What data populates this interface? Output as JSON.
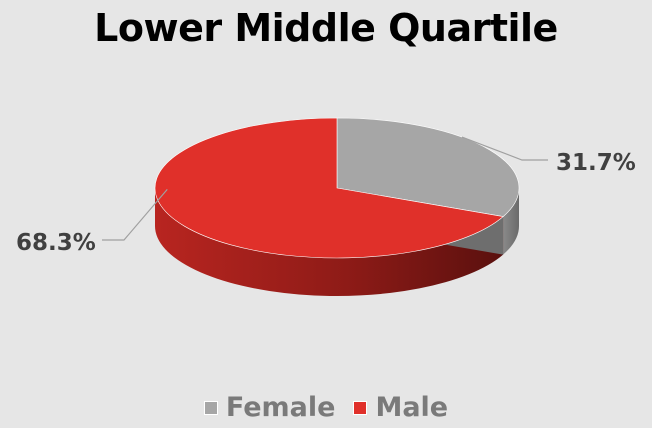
{
  "chart_data": {
    "type": "pie",
    "title": "Lower Middle Quartile",
    "slices": [
      {
        "name": "Female",
        "value": 31.7,
        "label": "31.7%",
        "color": "#a6a6a6"
      },
      {
        "name": "Male",
        "value": 68.3,
        "label": "68.3%",
        "color": "#e0302a"
      }
    ],
    "legend_position": "bottom",
    "style": "3d"
  }
}
